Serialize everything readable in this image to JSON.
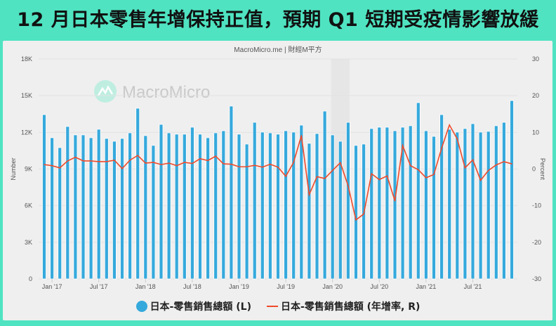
{
  "title": "12 月日本零售年增保持正值，預期 Q1 短期受疫情影響放緩",
  "credit": "MacroMicro.me | 財經M平方",
  "watermark": "MacroMicro",
  "colors": {
    "bars": "#35a9dc",
    "line": "#f04a2a",
    "header_bg": "#4fe3c1"
  },
  "chart_data": {
    "type": "bar+line",
    "x": [
      "2016-12",
      "2017-01",
      "2017-02",
      "2017-03",
      "2017-04",
      "2017-05",
      "2017-06",
      "2017-07",
      "2017-08",
      "2017-09",
      "2017-10",
      "2017-11",
      "2017-12",
      "2018-01",
      "2018-02",
      "2018-03",
      "2018-04",
      "2018-05",
      "2018-06",
      "2018-07",
      "2018-08",
      "2018-09",
      "2018-10",
      "2018-11",
      "2018-12",
      "2019-01",
      "2019-02",
      "2019-03",
      "2019-04",
      "2019-05",
      "2019-06",
      "2019-07",
      "2019-08",
      "2019-09",
      "2019-10",
      "2019-11",
      "2019-12",
      "2020-01",
      "2020-02",
      "2020-03",
      "2020-04",
      "2020-05",
      "2020-06",
      "2020-07",
      "2020-08",
      "2020-09",
      "2020-10",
      "2020-11",
      "2020-12",
      "2021-01",
      "2021-02",
      "2021-03",
      "2021-04",
      "2021-05",
      "2021-06",
      "2021-07",
      "2021-08",
      "2021-09",
      "2021-10",
      "2021-11",
      "2021-12"
    ],
    "x_tick_labels": [
      "Jan '17",
      "Jul '17",
      "Jan '18",
      "Jul '18",
      "Jan '19",
      "Jul '19",
      "Jan '20",
      "Jul '20",
      "Jan '21",
      "Jul '21"
    ],
    "y_left": {
      "label": "Number",
      "range": [
        0,
        18000
      ],
      "ticks": [
        "0",
        "3K",
        "6K",
        "9K",
        "12K",
        "15K",
        "18K"
      ]
    },
    "y_right": {
      "label": "Percent",
      "range": [
        -30,
        30
      ],
      "ticks": [
        "-30",
        "-20",
        "-10",
        "0",
        "10",
        "20",
        "30"
      ]
    },
    "grid": true,
    "legend_position": "bottom",
    "shaded_period": [
      "2020-01",
      "2020-03"
    ],
    "series": [
      {
        "name": "日本-零售銷售總額 (L)",
        "type": "bar",
        "axis": "left",
        "values": [
          13450,
          11560,
          10750,
          12480,
          11790,
          11790,
          11560,
          12250,
          11500,
          11270,
          11500,
          11960,
          13970,
          11730,
          10930,
          12650,
          11960,
          11850,
          11850,
          12420,
          11850,
          11560,
          11960,
          12130,
          14150,
          11850,
          11040,
          12820,
          12020,
          11960,
          11850,
          12130,
          12020,
          12590,
          11100,
          11900,
          13740,
          11790,
          11270,
          12820,
          10930,
          11040,
          12310,
          12420,
          12420,
          12130,
          12420,
          12540,
          14430,
          12130,
          11670,
          13450,
          12250,
          12020,
          12310,
          12710,
          12020,
          12080,
          12540,
          12820,
          14600
        ]
      },
      {
        "name": "日本-零售銷售總額 (年增率, R)",
        "type": "line",
        "axis": "right",
        "values": [
          1.2,
          0.9,
          0.3,
          2.2,
          3.2,
          2.2,
          2.2,
          2.0,
          2.0,
          2.4,
          0.1,
          2.4,
          3.7,
          1.6,
          1.8,
          1.2,
          1.6,
          0.9,
          1.8,
          1.5,
          2.8,
          2.3,
          3.5,
          1.4,
          1.3,
          0.6,
          0.6,
          1.0,
          0.5,
          1.3,
          0.5,
          -2.0,
          1.8,
          9.1,
          -7.0,
          -2.1,
          -2.6,
          -0.4,
          1.7,
          -4.6,
          -13.9,
          -12.3,
          -1.3,
          -2.9,
          -1.9,
          -8.7,
          6.4,
          0.9,
          -0.2,
          -2.4,
          -1.5,
          5.7,
          12.0,
          8.2,
          0.3,
          2.5,
          -3.1,
          -0.4,
          1.1,
          2.0,
          1.4
        ]
      }
    ]
  }
}
